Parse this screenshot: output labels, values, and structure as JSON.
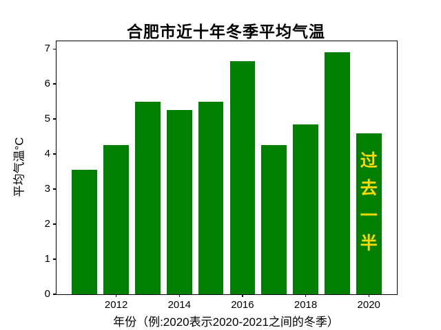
{
  "chart_data": {
    "type": "bar",
    "title": "合肥市近十年冬季平均气温",
    "xlabel": "年份（例:2020表示2020-2021之间的冬季）",
    "ylabel": "平均气温°C",
    "categories": [
      2011,
      2012,
      2013,
      2014,
      2015,
      2016,
      2017,
      2018,
      2019,
      2020
    ],
    "values": [
      3.55,
      4.25,
      5.5,
      5.25,
      5.5,
      6.65,
      4.25,
      4.85,
      6.9,
      4.6
    ],
    "bar_color": "#008000",
    "bar_width": 0.8,
    "xlim": [
      2010.11,
      2020.89
    ],
    "ylim": [
      0,
      7.22
    ],
    "xticks": [
      {
        "value": 2012,
        "label": "2012"
      },
      {
        "value": 2014,
        "label": "2014"
      },
      {
        "value": 2016,
        "label": "2016"
      },
      {
        "value": 2018,
        "label": "2018"
      },
      {
        "value": 2020,
        "label": "2020"
      }
    ],
    "yticks": [
      {
        "value": 0,
        "label": "0"
      },
      {
        "value": 1,
        "label": "1"
      },
      {
        "value": 2,
        "label": "2"
      },
      {
        "value": 3,
        "label": "3"
      },
      {
        "value": 4,
        "label": "4"
      },
      {
        "value": 5,
        "label": "5"
      },
      {
        "value": 6,
        "label": "6"
      },
      {
        "value": 7,
        "label": "7"
      }
    ],
    "grid": false,
    "legend": null,
    "annotation": {
      "text": "过去一半",
      "color": "#FFD900",
      "x": 2020,
      "orientation": "vertical"
    }
  }
}
